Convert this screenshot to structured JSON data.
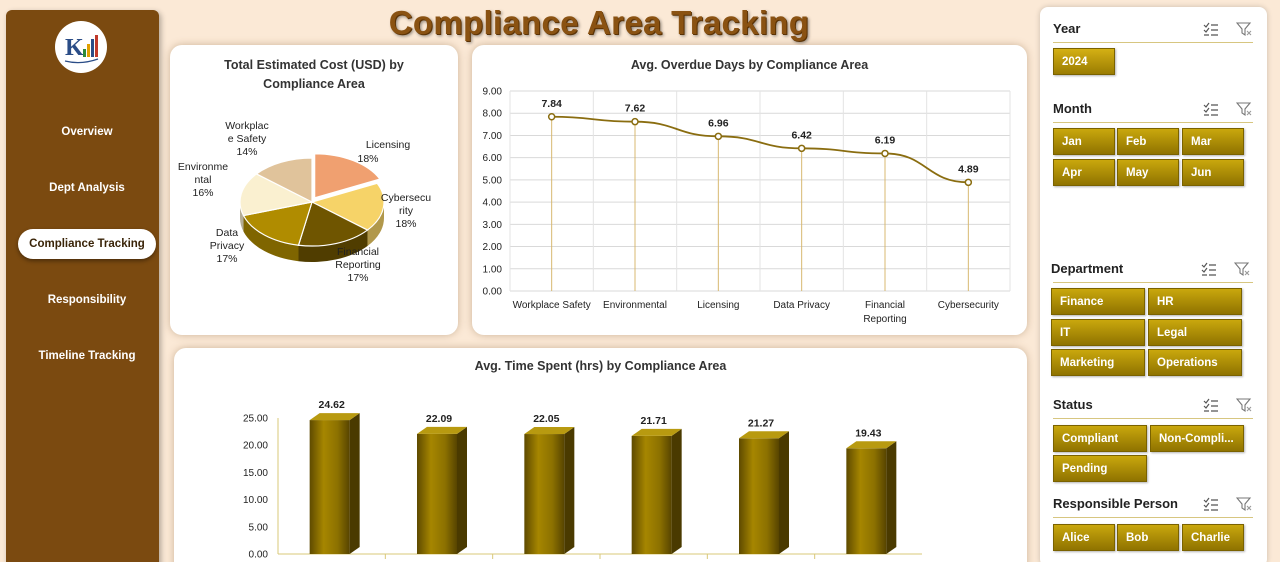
{
  "page_title": "Compliance Area Tracking",
  "nav": {
    "items": [
      {
        "label": "Overview",
        "active": false
      },
      {
        "label": "Dept Analysis",
        "active": false
      },
      {
        "label": "Compliance Tracking",
        "active": true
      },
      {
        "label": "Responsibility",
        "active": false
      },
      {
        "label": "Timeline Tracking",
        "active": false
      }
    ]
  },
  "chart_data": [
    {
      "type": "pie",
      "title": "Total Estimated Cost (USD) by Compliance Area",
      "categories": [
        "Licensing",
        "Cybersecurity",
        "Financial Reporting",
        "Data Privacy",
        "Environmental",
        "Workplace Safety"
      ],
      "values": [
        18,
        18,
        17,
        17,
        16,
        14
      ],
      "labels": [
        "18%",
        "18%",
        "17%",
        "17%",
        "16%",
        "14%"
      ],
      "colors": [
        "#f0a070",
        "#f6d368",
        "#6f5500",
        "#b08c00",
        "#faf0d0",
        "#e0c39b"
      ]
    },
    {
      "type": "line",
      "title": "Avg. Overdue Days by Compliance Area",
      "categories": [
        "Workplace Safety",
        "Environmental",
        "Licensing",
        "Data Privacy",
        "Financial Reporting",
        "Cybersecurity"
      ],
      "values": [
        7.84,
        7.62,
        6.96,
        6.42,
        6.19,
        4.89
      ],
      "value_labels": [
        "7.84",
        "7.62",
        "6.96",
        "6.42",
        "6.19",
        "4.89"
      ],
      "ylim": [
        0,
        9
      ],
      "yticks": [
        "0.00",
        "1.00",
        "2.00",
        "3.00",
        "4.00",
        "5.00",
        "6.00",
        "7.00",
        "8.00",
        "9.00"
      ],
      "color": "#8a6d10"
    },
    {
      "type": "bar",
      "title": "Avg. Time Spent (hrs) by Compliance Area",
      "values": [
        24.62,
        22.09,
        22.05,
        21.71,
        21.27,
        19.43
      ],
      "value_labels": [
        "24.62",
        "22.09",
        "22.05",
        "21.71",
        "21.27",
        "19.43"
      ],
      "ylim": [
        0,
        25
      ],
      "yticks": [
        "0.00",
        "5.00",
        "10.00",
        "15.00",
        "20.00",
        "25.00"
      ],
      "color": "#8c7100"
    }
  ],
  "slicers": {
    "year": {
      "label": "Year",
      "items": [
        "2024"
      ]
    },
    "month": {
      "label": "Month",
      "items": [
        "Jan",
        "Feb",
        "Mar",
        "Apr",
        "May",
        "Jun"
      ]
    },
    "department": {
      "label": "Department",
      "items": [
        "Finance",
        "HR",
        "IT",
        "Legal",
        "Marketing",
        "Operations"
      ]
    },
    "status": {
      "label": "Status",
      "items": [
        "Compliant",
        "Non-Compli...",
        "Pending"
      ]
    },
    "person": {
      "label": "Responsible Person",
      "items": [
        "Alice",
        "Bob",
        "Charlie"
      ]
    }
  }
}
